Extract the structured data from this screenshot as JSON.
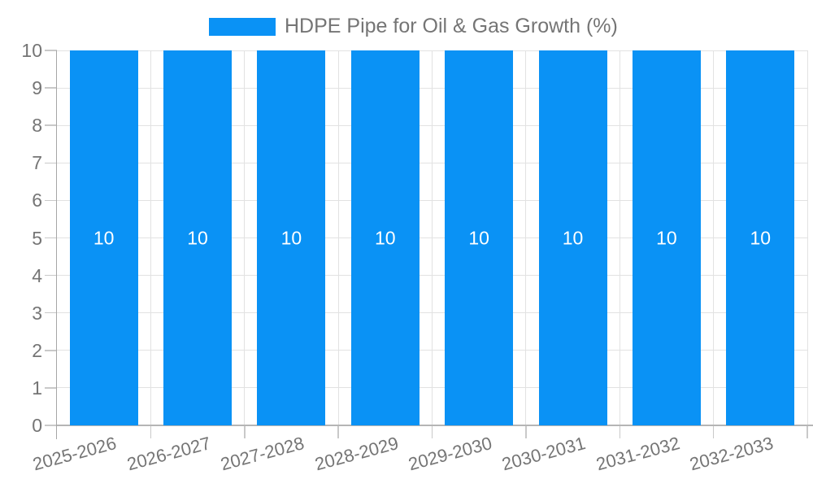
{
  "chart_data": {
    "type": "bar",
    "title": "",
    "legend": {
      "position": "top",
      "label": "HDPE Pipe for Oil & Gas Growth (%)"
    },
    "categories": [
      "2025-2026",
      "2026-2027",
      "2027-2028",
      "2028-2029",
      "2029-2030",
      "2030-2031",
      "2031-2032",
      "2032-2033"
    ],
    "series": [
      {
        "name": "HDPE Pipe for Oil & Gas Growth (%)",
        "values": [
          10,
          10,
          10,
          10,
          10,
          10,
          10,
          10
        ]
      }
    ],
    "bar_value_labels": [
      "10",
      "10",
      "10",
      "10",
      "10",
      "10",
      "10",
      "10"
    ],
    "xlabel": "",
    "ylabel": "",
    "ylim": [
      0,
      10
    ],
    "yticks": [
      0,
      1,
      2,
      3,
      4,
      5,
      6,
      7,
      8,
      9,
      10
    ],
    "grid": true,
    "colors": {
      "bar": "#0a92f5",
      "bar_label": "#ffffff",
      "axis_text": "#757575",
      "gridline": "#e2e2e2",
      "y_axis_line": "#a6a6a6",
      "x_axis_line": "#b5b5b5",
      "tick": "#c9c9c9",
      "background": "#ffffff"
    }
  }
}
